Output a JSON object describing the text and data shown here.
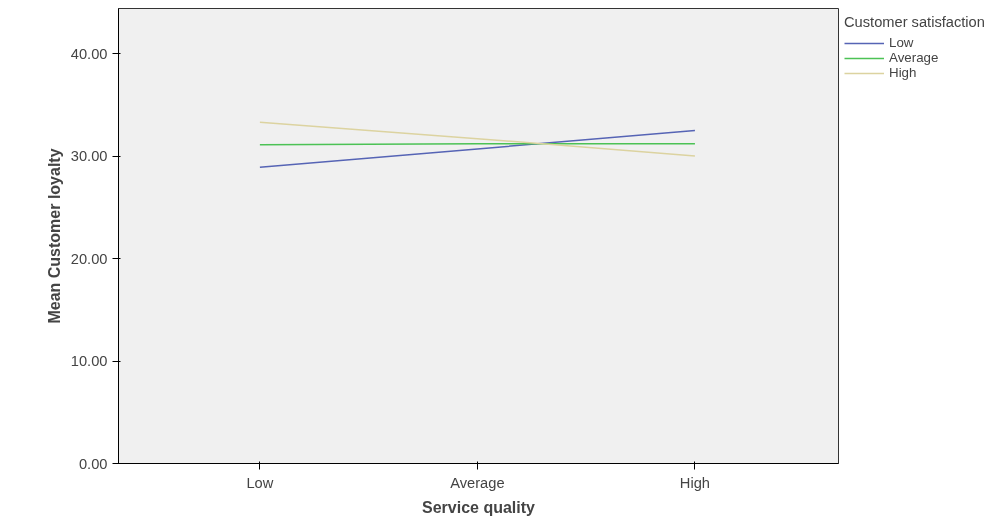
{
  "chart_data": {
    "type": "line",
    "xlabel": "Service quality",
    "ylabel": "Mean Customer loyalty",
    "legend_title": "Customer satisfaction",
    "categories": [
      "Low",
      "Average",
      "High"
    ],
    "series": [
      {
        "name": "Low",
        "color": "#5664b5",
        "values": [
          28.9,
          30.7,
          32.5
        ]
      },
      {
        "name": "Average",
        "color": "#4cc255",
        "values": [
          31.1,
          31.2,
          31.2
        ]
      },
      {
        "name": "High",
        "color": "#dcd3a0",
        "values": [
          33.3,
          31.7,
          30.0
        ]
      }
    ],
    "ylim": [
      0,
      44.4
    ],
    "yticks": [
      {
        "value": 0,
        "label": "0.00"
      },
      {
        "value": 10,
        "label": "10.00"
      },
      {
        "value": 20,
        "label": "20.00"
      },
      {
        "value": 30,
        "label": "30.00"
      },
      {
        "value": 40,
        "label": "40.00"
      }
    ],
    "grid": false,
    "legend": "top right",
    "marker": "none",
    "line_style": "solid"
  }
}
